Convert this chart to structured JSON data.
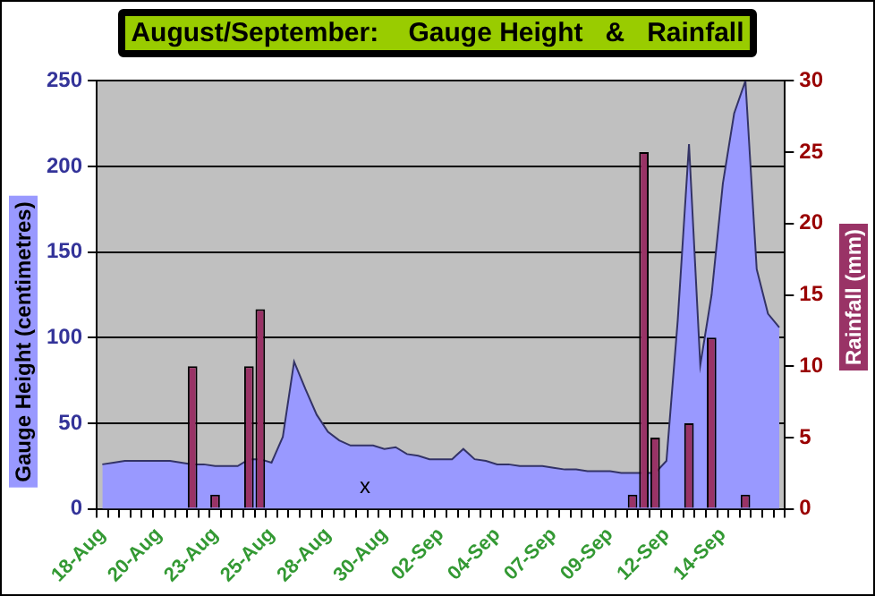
{
  "chart_data": {
    "type": "area",
    "title": "August/September:    Gauge Height   &   Rainfall",
    "ylabel": "Gauge Height (centimetres)",
    "y2label": "Rainfall (mm)",
    "categories": [
      "18-Aug",
      null,
      null,
      null,
      null,
      "20-Aug",
      null,
      null,
      null,
      null,
      "23-Aug",
      null,
      null,
      null,
      null,
      "25-Aug",
      null,
      null,
      null,
      null,
      "28-Aug",
      null,
      null,
      null,
      null,
      "30-Aug",
      null,
      null,
      null,
      null,
      "02-Sep",
      null,
      null,
      null,
      null,
      "04-Sep",
      null,
      null,
      null,
      null,
      "07-Sep",
      null,
      null,
      null,
      null,
      "09-Sep",
      null,
      null,
      null,
      null,
      "12-Sep",
      null,
      null,
      null,
      null,
      "14-Sep",
      null,
      null,
      null,
      null,
      null
    ],
    "series": [
      {
        "color": "#9999ff",
        "values": [
          26,
          27,
          28,
          28,
          28,
          28,
          28,
          27,
          26,
          26,
          25,
          25,
          25,
          29,
          29,
          27,
          42,
          86,
          70,
          55,
          45,
          40,
          37,
          37,
          37,
          35,
          36,
          32,
          31,
          29,
          29,
          29,
          35,
          29,
          28,
          26,
          26,
          25,
          25,
          25,
          24,
          23,
          23,
          22,
          22,
          22,
          21,
          21,
          21,
          21,
          28,
          110,
          213,
          84,
          125,
          190,
          231,
          250,
          140,
          114,
          106
        ]
      },
      {
        "type": "bar",
        "axis": "y2",
        "color": "#993366",
        "values": [
          null,
          null,
          null,
          null,
          null,
          null,
          null,
          null,
          10,
          null,
          1,
          null,
          null,
          10,
          14,
          null,
          null,
          null,
          null,
          null,
          null,
          null,
          null,
          null,
          null,
          null,
          null,
          null,
          null,
          null,
          null,
          null,
          null,
          null,
          null,
          null,
          null,
          null,
          null,
          null,
          null,
          null,
          null,
          null,
          null,
          null,
          null,
          1,
          25,
          5,
          null,
          null,
          6,
          null,
          12,
          null,
          null,
          1,
          null,
          null,
          null
        ]
      }
    ],
    "ylim": [
      0,
      250
    ],
    "yticks": [
      0,
      50,
      100,
      150,
      200,
      250
    ],
    "y2lim": [
      0,
      30
    ],
    "y2ticks": [
      0,
      5,
      10,
      15,
      20,
      25,
      30
    ],
    "grid": "y",
    "legend": false,
    "annotations": [
      "x"
    ]
  }
}
